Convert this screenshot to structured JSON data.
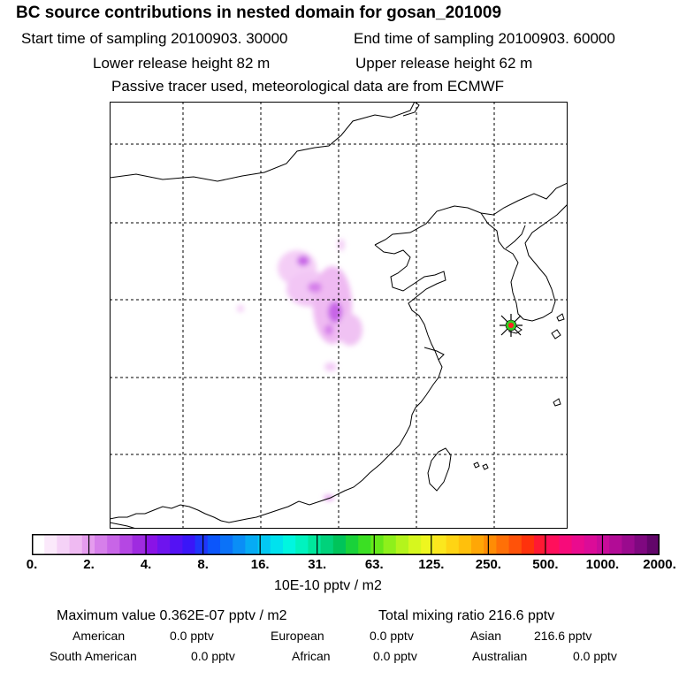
{
  "header": {
    "title": "BC  source contributions in nested domain for gosan_201009",
    "start_label": "Start time of sampling 20100903. 30000",
    "end_label": "End time of sampling 20100903. 60000",
    "lower_label": "Lower release height   82 m",
    "upper_label": "Upper release height   62 m",
    "note": "Passive tracer used, meteorological data are from ECMWF"
  },
  "colorbar": {
    "labels": [
      "0.",
      "2.",
      "4.",
      "8.",
      "16.",
      "31.",
      "63.",
      "125.",
      "250.",
      "500.",
      "1000.",
      "2000."
    ],
    "colors": [
      "#ffffff",
      "#fbe9fb",
      "#f5d2f7",
      "#efbaf2",
      "#e59cee",
      "#d67fea",
      "#c865e7",
      "#b547e3",
      "#9f2be0",
      "#8a13e6",
      "#6e14ee",
      "#5412f4",
      "#3a16f8",
      "#1f36fb",
      "#0c56fb",
      "#0b72f8",
      "#0a8ef6",
      "#06abf4",
      "#03c8f2",
      "#00e2ee",
      "#00f6e0",
      "#00f3bf",
      "#00e79c",
      "#00d27b",
      "#00c45a",
      "#19d23a",
      "#3bdf23",
      "#66e81a",
      "#8ef01b",
      "#b4f41c",
      "#d6f71e",
      "#eef61f",
      "#fbe71e",
      "#fed414",
      "#ffc00c",
      "#ffa706",
      "#ff8c05",
      "#ff7007",
      "#ff5209",
      "#ff320c",
      "#ff1933",
      "#ff0f5b",
      "#f70b7a",
      "#ea0b8e",
      "#db0c98",
      "#c80c9a",
      "#b20c96",
      "#9a0a8e",
      "#7f0880",
      "#62066a"
    ],
    "units": "10E-10 pptv / m2"
  },
  "summary": {
    "max_value": "Maximum value  0.362E-07 pptv / m2",
    "total_mixing": "Total mixing ratio      216.6 pptv",
    "american_label": "American",
    "american_value": "0.0 pptv",
    "european_label": "European",
    "european_value": "0.0 pptv",
    "asian_label": "Asian",
    "asian_value": "216.6 pptv",
    "south_american_label": "South American",
    "south_american_value": "0.0 pptv",
    "african_label": "African",
    "african_value": "0.0 pptv",
    "australian_label": "Australian",
    "australian_value": "0.0 pptv"
  },
  "chart_data": {
    "type": "heatmap",
    "title": "BC  source contributions in nested domain for gosan_201009",
    "units": "10E-10 pptv / m2",
    "color_scale": [
      0,
      2,
      4,
      8,
      16,
      31,
      63,
      125,
      250,
      500,
      1000,
      2000
    ],
    "max_value_pptv_per_m2": 3.62e-08,
    "total_mixing_ratio_pptv": 216.6,
    "contributions_pptv": {
      "American": 0.0,
      "European": 0.0,
      "Asian": 216.6,
      "South American": 0.0,
      "African": 0.0,
      "Australian": 0.0
    },
    "receptor": "gosan",
    "sampling_start": "20100903. 30000",
    "sampling_end": "20100903. 60000",
    "grid": "dashed"
  }
}
